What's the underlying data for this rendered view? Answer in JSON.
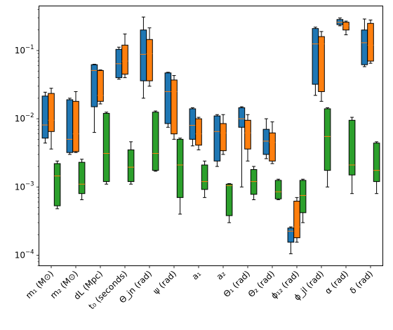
{
  "chart_data": {
    "type": "box",
    "y_scale": "log",
    "ylim": [
      7e-05,
      0.45
    ],
    "y_ticks": [
      {
        "value": 0.0001,
        "base": "10",
        "exp": "−4"
      },
      {
        "value": 0.001,
        "base": "10",
        "exp": "−3"
      },
      {
        "value": 0.01,
        "base": "10",
        "exp": "−2"
      },
      {
        "value": 0.1,
        "base": "10",
        "exp": "−1"
      }
    ],
    "median_color": "#ff7f0e",
    "categories": [
      {
        "label": "m₁ (M⊙)"
      },
      {
        "label": "m₂ (M⊙)"
      },
      {
        "label": "dL (Mpc)"
      },
      {
        "label": "t₀ (seconds)"
      },
      {
        "label": "Θ_jn (rad)"
      },
      {
        "label": "ψ (rad)"
      },
      {
        "label": "a₁"
      },
      {
        "label": "a₂"
      },
      {
        "label": "Θ₁ (rad)"
      },
      {
        "label": "Θ₂ (rad)"
      },
      {
        "label": "ϕ₁₂ (rad)"
      },
      {
        "label": "ϕ_jl (rad)"
      },
      {
        "label": "α (rad)"
      },
      {
        "label": "δ (rad)"
      }
    ],
    "series": [
      {
        "color": "#1f77b4",
        "boxes": [
          {
            "whislo": 0.0044,
            "q1": 0.0052,
            "med": 0.0081,
            "q3": 0.0215,
            "whishi": 0.0245
          },
          {
            "whislo": 0.003,
            "q1": 0.0032,
            "med": 0.005,
            "q3": 0.019,
            "whishi": 0.02
          },
          {
            "whislo": 0.0063,
            "q1": 0.015,
            "med": 0.051,
            "q3": 0.062,
            "whishi": 0.063
          },
          {
            "whislo": 0.038,
            "q1": 0.04,
            "med": 0.064,
            "q3": 0.104,
            "whishi": 0.112
          },
          {
            "whislo": 0.02,
            "q1": 0.036,
            "med": 0.088,
            "q3": 0.2,
            "whishi": 0.31
          },
          {
            "whislo": 0.0075,
            "q1": 0.0085,
            "med": 0.025,
            "q3": 0.047,
            "whishi": 0.048
          },
          {
            "whislo": 0.004,
            "q1": 0.005,
            "med": 0.008,
            "q3": 0.014,
            "whishi": 0.0145
          },
          {
            "whislo": 0.002,
            "q1": 0.0024,
            "med": 0.0065,
            "q3": 0.011,
            "whishi": 0.0115
          },
          {
            "whislo": 0.001,
            "q1": 0.0075,
            "med": 0.01,
            "q3": 0.0145,
            "whishi": 0.015
          },
          {
            "whislo": 0.0026,
            "q1": 0.003,
            "med": 0.0047,
            "q3": 0.007,
            "whishi": 0.01
          },
          {
            "whislo": 0.000105,
            "q1": 0.000155,
            "med": 0.000225,
            "q3": 0.00025,
            "whishi": 0.00026
          },
          {
            "whislo": 0.022,
            "q1": 0.032,
            "med": 0.125,
            "q3": 0.21,
            "whishi": 0.22
          },
          {
            "whislo": 0.23,
            "q1": 0.24,
            "med": 0.26,
            "q3": 0.285,
            "whishi": 0.3
          },
          {
            "whislo": 0.058,
            "q1": 0.062,
            "med": 0.13,
            "q3": 0.2,
            "whishi": 0.29
          }
        ]
      },
      {
        "color": "#ff7f0e",
        "boxes": [
          {
            "whislo": 0.0036,
            "q1": 0.0065,
            "med": 0.0095,
            "q3": 0.0235,
            "whishi": 0.028
          },
          {
            "whislo": 0.0032,
            "q1": 0.0033,
            "med": 0.006,
            "q3": 0.018,
            "whishi": 0.025
          },
          {
            "whislo": 0.0165,
            "q1": 0.018,
            "med": 0.022,
            "q3": 0.051,
            "whishi": 0.052
          },
          {
            "whislo": 0.04,
            "q1": 0.045,
            "med": 0.07,
            "q3": 0.12,
            "whishi": 0.175
          },
          {
            "whislo": 0.03,
            "q1": 0.036,
            "med": 0.09,
            "q3": 0.145,
            "whishi": 0.215
          },
          {
            "whislo": 0.005,
            "q1": 0.006,
            "med": 0.025,
            "q3": 0.037,
            "whishi": 0.043
          },
          {
            "whislo": 0.0035,
            "q1": 0.0041,
            "med": 0.006,
            "q3": 0.01,
            "whishi": 0.0105
          },
          {
            "whislo": 0.003,
            "q1": 0.0034,
            "med": 0.0062,
            "q3": 0.0085,
            "whishi": 0.0115
          },
          {
            "whislo": 0.0024,
            "q1": 0.0036,
            "med": 0.0062,
            "q3": 0.0095,
            "whishi": 0.0115
          },
          {
            "whislo": 0.0022,
            "q1": 0.0024,
            "med": 0.0045,
            "q3": 0.0062,
            "whishi": 0.009
          },
          {
            "whislo": 0.000155,
            "q1": 0.00018,
            "med": 0.00026,
            "q3": 0.00062,
            "whishi": 0.0007
          },
          {
            "whislo": 0.018,
            "q1": 0.025,
            "med": 0.125,
            "q3": 0.16,
            "whishi": 0.19
          },
          {
            "whislo": 0.17,
            "q1": 0.2,
            "med": 0.23,
            "q3": 0.26,
            "whishi": 0.27
          },
          {
            "whislo": 0.065,
            "q1": 0.07,
            "med": 0.12,
            "q3": 0.25,
            "whishi": 0.28
          }
        ]
      },
      {
        "color": "#2ca02c",
        "boxes": [
          {
            "whislo": 0.00048,
            "q1": 0.00053,
            "med": 0.00145,
            "q3": 0.0022,
            "whishi": 0.0024
          },
          {
            "whislo": 0.00065,
            "q1": 0.0008,
            "med": 0.0011,
            "q3": 0.0023,
            "whishi": 0.00255
          },
          {
            "whislo": 0.0011,
            "q1": 0.0012,
            "med": 0.0031,
            "q3": 0.012,
            "whishi": 0.0125
          },
          {
            "whislo": 0.0011,
            "q1": 0.0012,
            "med": 0.00195,
            "q3": 0.0035,
            "whishi": 0.0046
          },
          {
            "whislo": 0.0017,
            "q1": 0.00175,
            "med": 0.0031,
            "q3": 0.0125,
            "whishi": 0.013
          },
          {
            "whislo": 0.0004,
            "q1": 0.0007,
            "med": 0.0021,
            "q3": 0.005,
            "whishi": 0.0052
          },
          {
            "whislo": 0.0007,
            "q1": 0.00092,
            "med": 0.0012,
            "q3": 0.0021,
            "whishi": 0.0024
          },
          {
            "whislo": 0.0003,
            "q1": 0.00038,
            "med": 0.00105,
            "q3": 0.0011,
            "whishi": 0.00112
          },
          {
            "whislo": 0.00065,
            "q1": 0.00078,
            "med": 0.0012,
            "q3": 0.0018,
            "whishi": 0.002
          },
          {
            "whislo": 0.00065,
            "q1": 0.00067,
            "med": 0.00085,
            "q3": 0.00125,
            "whishi": 0.0013
          },
          {
            "whislo": 0.0003,
            "q1": 0.00042,
            "med": 0.00075,
            "q3": 0.00125,
            "whishi": 0.0013
          },
          {
            "whislo": 0.001,
            "q1": 0.00175,
            "med": 0.0055,
            "q3": 0.014,
            "whishi": 0.0145
          },
          {
            "whislo": 0.0008,
            "q1": 0.0015,
            "med": 0.0021,
            "q3": 0.0095,
            "whishi": 0.0105
          },
          {
            "whislo": 0.0008,
            "q1": 0.0012,
            "med": 0.00175,
            "q3": 0.0044,
            "whishi": 0.0046
          }
        ]
      }
    ]
  }
}
